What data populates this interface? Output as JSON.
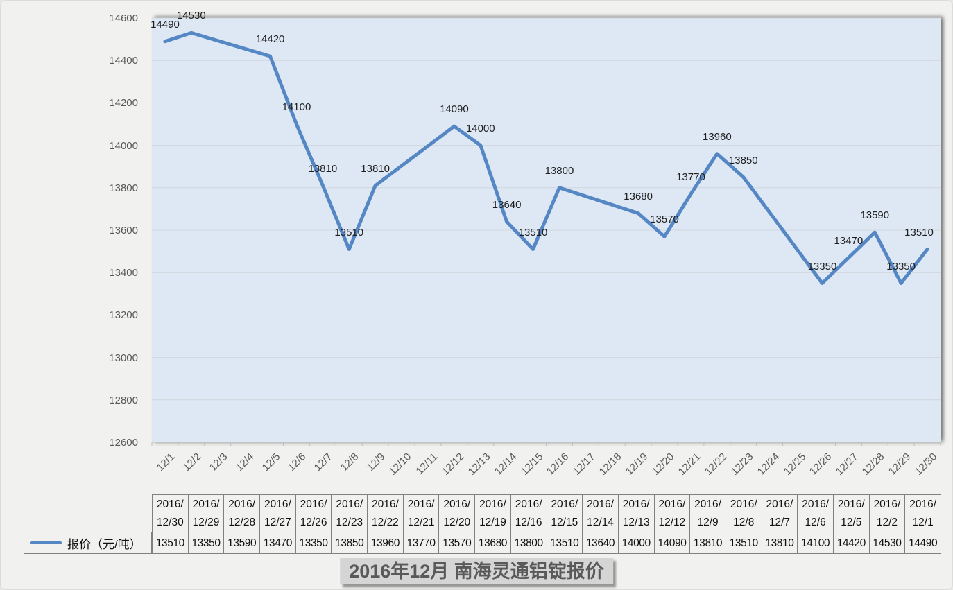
{
  "title": {
    "text": "2016年12月 南海灵通铝锭报价"
  },
  "legend": {
    "label": "报价（元/吨）"
  },
  "chart_data": {
    "type": "line",
    "title": "2016年12月 南海灵通铝锭报价",
    "xlabel": "",
    "ylabel": "",
    "grid": true,
    "data_labels": true,
    "legend_position": "bottom-left",
    "y_axis": {
      "min": 12600,
      "max": 14600,
      "step": 200
    },
    "x_tick_labels": [
      "12/1",
      "12/2",
      "12/3",
      "12/4",
      "12/5",
      "12/6",
      "12/7",
      "12/8",
      "12/9",
      "12/10",
      "12/11",
      "12/12",
      "12/13",
      "12/14",
      "12/15",
      "12/16",
      "12/17",
      "12/18",
      "12/19",
      "12/20",
      "12/21",
      "12/22",
      "12/23",
      "12/24",
      "12/25",
      "12/26",
      "12/27",
      "12/28",
      "12/29",
      "12/30"
    ],
    "series": [
      {
        "name": "报价（元/吨）",
        "points": [
          {
            "date": "12/1",
            "value": 14490
          },
          {
            "date": "12/2",
            "value": 14530
          },
          {
            "date": "12/5",
            "value": 14420
          },
          {
            "date": "12/6",
            "value": 14100
          },
          {
            "date": "12/7",
            "value": 13810
          },
          {
            "date": "12/8",
            "value": 13510
          },
          {
            "date": "12/9",
            "value": 13810
          },
          {
            "date": "12/12",
            "value": 14090
          },
          {
            "date": "12/13",
            "value": 14000
          },
          {
            "date": "12/14",
            "value": 13640
          },
          {
            "date": "12/15",
            "value": 13510
          },
          {
            "date": "12/16",
            "value": 13800
          },
          {
            "date": "12/19",
            "value": 13680
          },
          {
            "date": "12/20",
            "value": 13570
          },
          {
            "date": "12/21",
            "value": 13770
          },
          {
            "date": "12/22",
            "value": 13960
          },
          {
            "date": "12/23",
            "value": 13850
          },
          {
            "date": "12/26",
            "value": 13350
          },
          {
            "date": "12/27",
            "value": 13470
          },
          {
            "date": "12/28",
            "value": 13590
          },
          {
            "date": "12/29",
            "value": 13350
          },
          {
            "date": "12/30",
            "value": 13510
          }
        ]
      }
    ]
  },
  "table": {
    "row_label": "报价（元/吨）",
    "columns": [
      {
        "header": "2016/12/30",
        "value": "13510"
      },
      {
        "header": "2016/12/29",
        "value": "13350"
      },
      {
        "header": "2016/12/28",
        "value": "13590"
      },
      {
        "header": "2016/12/27",
        "value": "13470"
      },
      {
        "header": "2016/12/26",
        "value": "13350"
      },
      {
        "header": "2016/12/23",
        "value": "13850"
      },
      {
        "header": "2016/12/22",
        "value": "13960"
      },
      {
        "header": "2016/12/21",
        "value": "13770"
      },
      {
        "header": "2016/12/20",
        "value": "13570"
      },
      {
        "header": "2016/12/19",
        "value": "13680"
      },
      {
        "header": "2016/12/16",
        "value": "13800"
      },
      {
        "header": "2016/12/15",
        "value": "13510"
      },
      {
        "header": "2016/12/14",
        "value": "13640"
      },
      {
        "header": "2016/12/13",
        "value": "14000"
      },
      {
        "header": "2016/12/12",
        "value": "14090"
      },
      {
        "header": "2016/12/9",
        "value": "13810"
      },
      {
        "header": "2016/12/8",
        "value": "13510"
      },
      {
        "header": "2016/12/7",
        "value": "13810"
      },
      {
        "header": "2016/12/6",
        "value": "14100"
      },
      {
        "header": "2016/12/5",
        "value": "14420"
      },
      {
        "header": "2016/12/2",
        "value": "14530"
      },
      {
        "header": "2016/12/1",
        "value": "14490"
      }
    ]
  },
  "colors": {
    "line": "#5587C5",
    "plot_bg": "#DDE8F4",
    "gridline": "#D1D6DC",
    "axis_line": "#BFBFBF",
    "axis_text": "#595959",
    "label_text": "#1F1F1F",
    "table_border": "#808080",
    "title_bg": "#D5D5D5",
    "title_text": "#595959",
    "canvas_bg": "#F1F1EF"
  }
}
